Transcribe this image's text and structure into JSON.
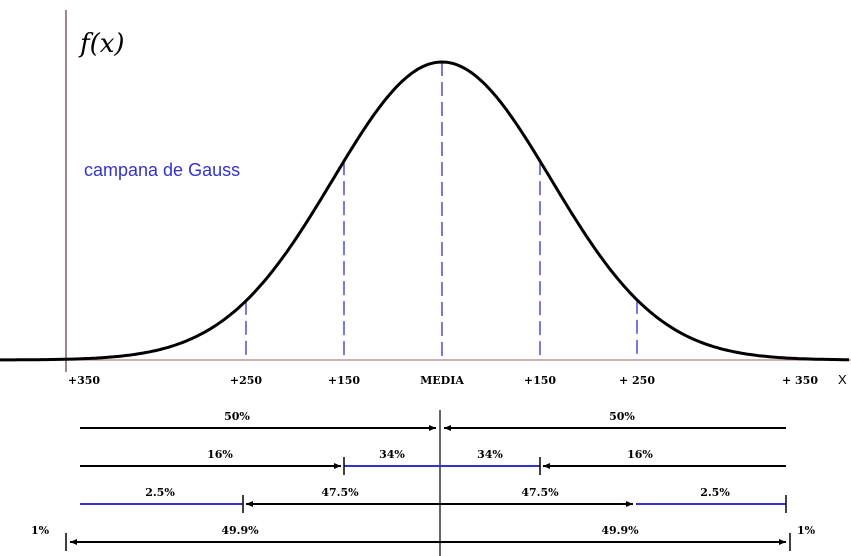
{
  "y_axis_label": "f(x)",
  "curve_label": "campana de Gauss",
  "x_labels": [
    "+350",
    "+250",
    "+150",
    "MEDIA",
    "+150",
    "+ 250",
    "+ 350"
  ],
  "x_axis_label": "X",
  "rows": [
    [
      "50%",
      "50%"
    ],
    [
      "16%",
      "34%",
      "34%",
      "16%"
    ],
    [
      "2.5%",
      "47.5%",
      "47.5%",
      "2.5%"
    ],
    [
      "1%",
      "49.9%",
      "49.9%",
      "1%"
    ]
  ]
}
